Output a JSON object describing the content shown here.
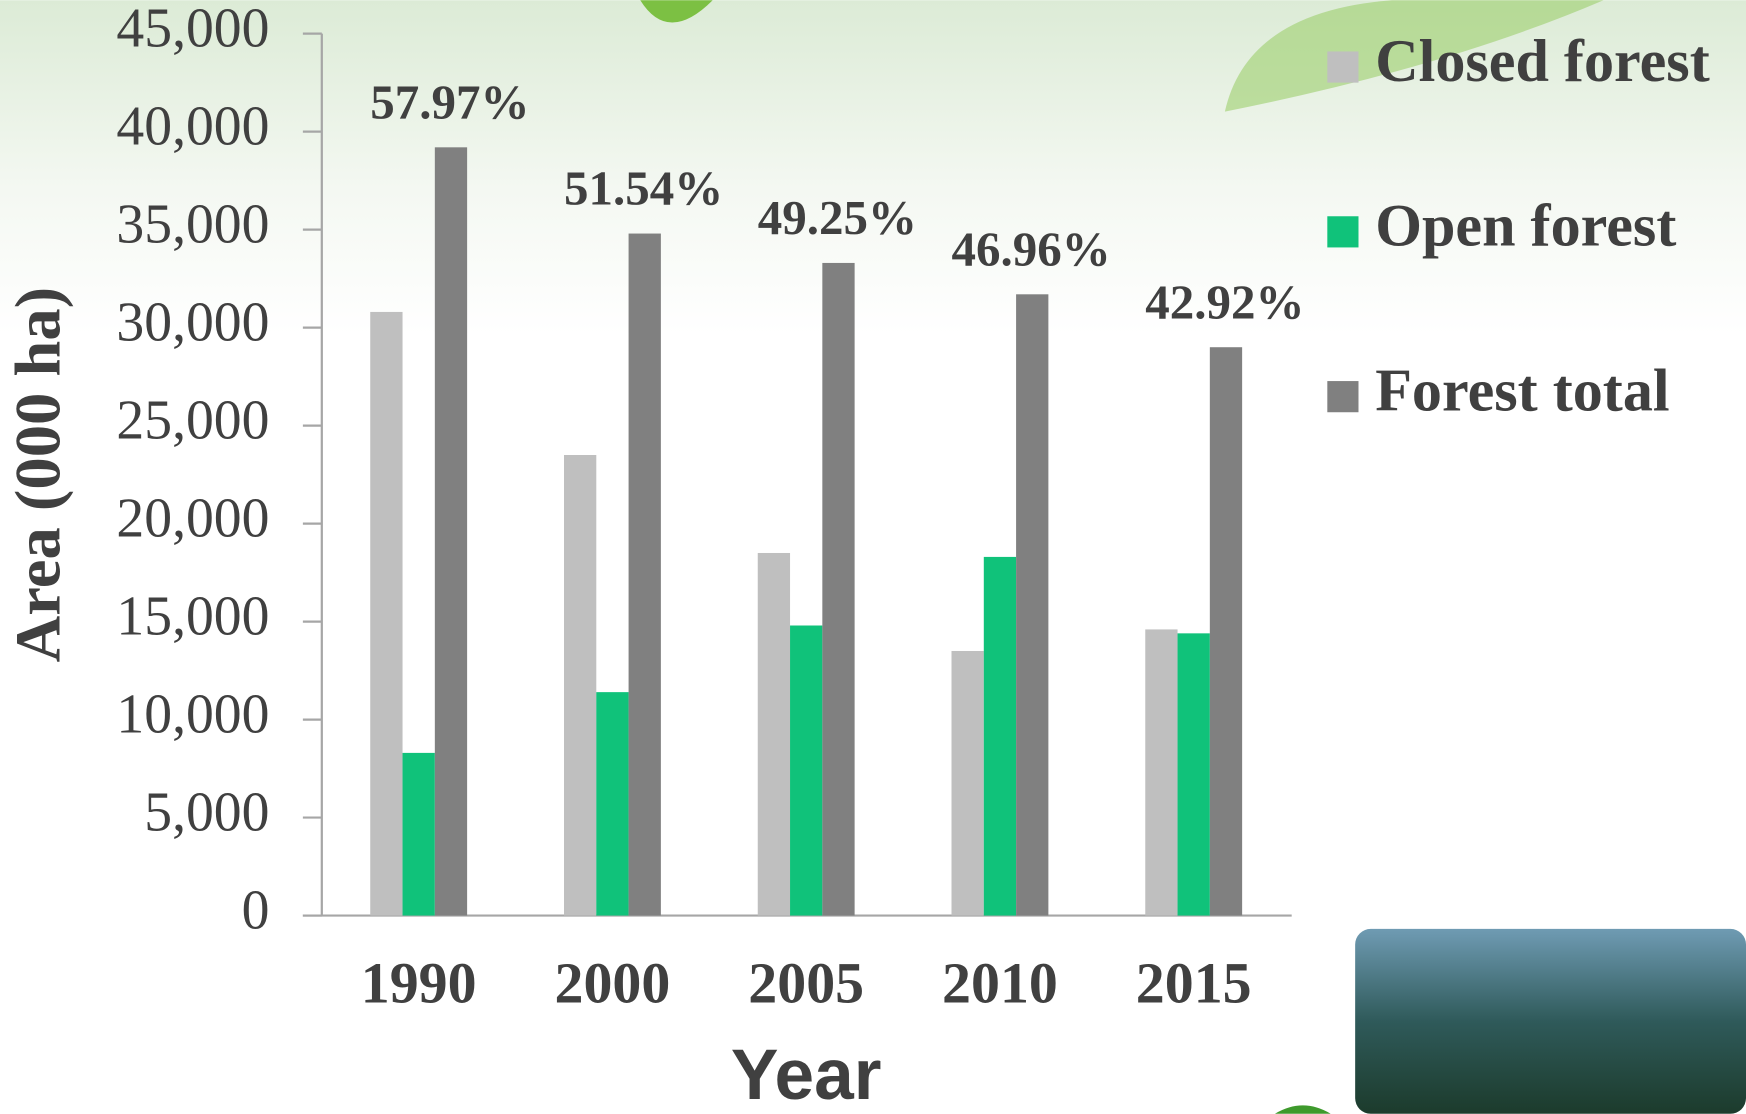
{
  "chart_data": {
    "type": "bar",
    "categories": [
      "1990",
      "2000",
      "2005",
      "2010",
      "2015"
    ],
    "series": [
      {
        "name": "Closed forest",
        "color": "#bfbfbf",
        "values": [
          30800,
          23500,
          18500,
          13500,
          14600
        ]
      },
      {
        "name": "Open forest",
        "color": "#10c27a",
        "values": [
          8300,
          11400,
          14800,
          18300,
          14400
        ]
      },
      {
        "name": "Forest total",
        "color": "#808080",
        "values": [
          39200,
          34800,
          33300,
          31700,
          29000
        ]
      }
    ],
    "annotations": [
      "57.97%",
      "51.54%",
      "49.25%",
      "46.96%",
      "42.92%"
    ],
    "x_label": "Year",
    "y_label": "Area (000 ha)",
    "ylim": [
      0,
      45000
    ],
    "yticks": [
      0,
      {
        "value": 5000,
        "label": "5,000"
      },
      {
        "value": 10000,
        "label": "10,000"
      },
      {
        "value": 15000,
        "label": "15,000"
      },
      {
        "value": 20000,
        "label": "20,000"
      },
      {
        "value": 25000,
        "label": "25,000"
      },
      {
        "value": 30000,
        "label": "30,000"
      },
      {
        "value": 35000,
        "label": "35,000"
      },
      {
        "value": 40000,
        "label": "40,000"
      },
      {
        "value": 45000,
        "label": "45,000"
      }
    ],
    "grid": false,
    "legend": "right"
  }
}
